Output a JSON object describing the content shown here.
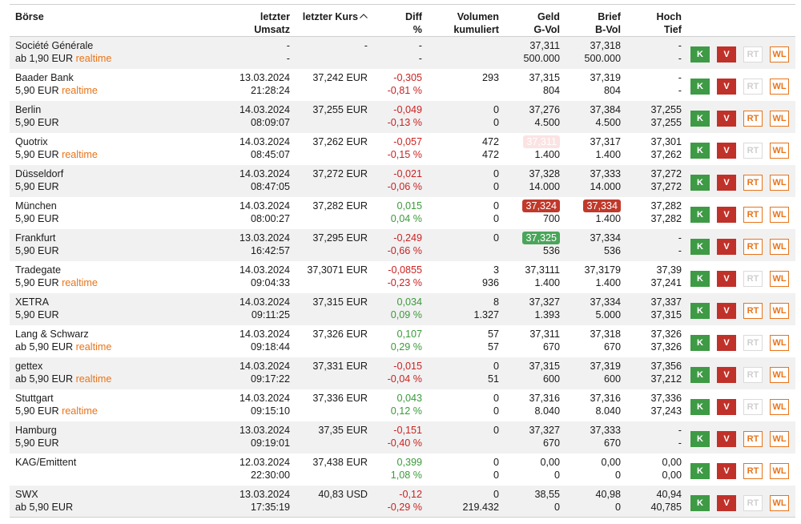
{
  "headers": {
    "boerse": "Börse",
    "umsatz_1": "letzter",
    "umsatz_2": "Umsatz",
    "kurs": "letzter Kurs",
    "diff_1": "Diff",
    "diff_2": "%",
    "vol_1": "Volumen",
    "vol_2": "kumuliert",
    "geld_1": "Geld",
    "geld_2": "G-Vol",
    "brief_1": "Brief",
    "brief_2": "B-Vol",
    "hoch_1": "Hoch",
    "hoch_2": "Tief"
  },
  "buttons": {
    "k": "K",
    "v": "V",
    "rt": "RT",
    "wl": "WL"
  },
  "colors": {
    "positive": "#3a9a3a",
    "negative": "#cc2222",
    "accent": "#e8741a",
    "buy": "#3e9a45",
    "sell": "#c0312a"
  },
  "rows": [
    {
      "name": "Société Générale",
      "fee": "ab 1,90 EUR",
      "rt_label": "realtime",
      "date": "-",
      "time": "-",
      "kurs": "-",
      "diff": "-",
      "pct": "-",
      "dir": "",
      "vol1": "",
      "vol2": "",
      "geld": "37,311",
      "gvol": "500.000",
      "brief": "37,318",
      "bvol": "500.000",
      "hoch": "-",
      "tief": "-",
      "rt_enabled": false,
      "geld_hl": "",
      "brief_hl": ""
    },
    {
      "name": "Baader Bank",
      "fee": "5,90 EUR",
      "rt_label": "realtime",
      "date": "13.03.2024",
      "time": "21:28:24",
      "kurs": "37,242 EUR",
      "diff": "-0,305",
      "pct": "-0,81 %",
      "dir": "neg",
      "vol1": "293",
      "vol2": "",
      "geld": "37,315",
      "gvol": "804",
      "brief": "37,319",
      "bvol": "804",
      "hoch": "-",
      "tief": "-",
      "rt_enabled": false,
      "geld_hl": "",
      "brief_hl": ""
    },
    {
      "name": "Berlin",
      "fee": "5,90 EUR",
      "rt_label": "",
      "date": "14.03.2024",
      "time": "08:09:07",
      "kurs": "37,255 EUR",
      "diff": "-0,049",
      "pct": "-0,13 %",
      "dir": "neg",
      "vol1": "0",
      "vol2": "0",
      "geld": "37,276",
      "gvol": "4.500",
      "brief": "37,384",
      "bvol": "4.500",
      "hoch": "37,255",
      "tief": "37,255",
      "rt_enabled": true,
      "geld_hl": "",
      "brief_hl": ""
    },
    {
      "name": "Quotrix",
      "fee": "5,90 EUR",
      "rt_label": "realtime",
      "date": "14.03.2024",
      "time": "08:45:07",
      "kurs": "37,262 EUR",
      "diff": "-0,057",
      "pct": "-0,15 %",
      "dir": "neg",
      "vol1": "472",
      "vol2": "472",
      "geld": "37,311",
      "gvol": "1.400",
      "brief": "37,317",
      "bvol": "1.400",
      "hoch": "37,301",
      "tief": "37,262",
      "rt_enabled": false,
      "geld_hl": "faint",
      "brief_hl": ""
    },
    {
      "name": "Düsseldorf",
      "fee": "5,90 EUR",
      "rt_label": "",
      "date": "14.03.2024",
      "time": "08:47:05",
      "kurs": "37,272 EUR",
      "diff": "-0,021",
      "pct": "-0,06 %",
      "dir": "neg",
      "vol1": "0",
      "vol2": "0",
      "geld": "37,328",
      "gvol": "14.000",
      "brief": "37,333",
      "bvol": "14.000",
      "hoch": "37,272",
      "tief": "37,272",
      "rt_enabled": true,
      "geld_hl": "",
      "brief_hl": ""
    },
    {
      "name": "München",
      "fee": "5,90 EUR",
      "rt_label": "",
      "date": "14.03.2024",
      "time": "08:00:27",
      "kurs": "37,282 EUR",
      "diff": "0,015",
      "pct": "0,04 %",
      "dir": "pos",
      "vol1": "0",
      "vol2": "0",
      "geld": "37,324",
      "gvol": "700",
      "brief": "37,334",
      "bvol": "1.400",
      "hoch": "37,282",
      "tief": "37,282",
      "rt_enabled": true,
      "geld_hl": "red",
      "brief_hl": "red"
    },
    {
      "name": "Frankfurt",
      "fee": "5,90 EUR",
      "rt_label": "",
      "date": "13.03.2024",
      "time": "16:42:57",
      "kurs": "37,295 EUR",
      "diff": "-0,249",
      "pct": "-0,66 %",
      "dir": "neg",
      "vol1": "0",
      "vol2": "",
      "geld": "37,325",
      "gvol": "536",
      "brief": "37,334",
      "bvol": "536",
      "hoch": "-",
      "tief": "-",
      "rt_enabled": true,
      "geld_hl": "green",
      "brief_hl": ""
    },
    {
      "name": "Tradegate",
      "fee": "5,90 EUR",
      "rt_label": "realtime",
      "date": "14.03.2024",
      "time": "09:04:33",
      "kurs": "37,3071 EUR",
      "diff": "-0,0855",
      "pct": "-0,23 %",
      "dir": "neg",
      "vol1": "3",
      "vol2": "936",
      "geld": "37,3111",
      "gvol": "1.400",
      "brief": "37,3179",
      "bvol": "1.400",
      "hoch": "37,39",
      "tief": "37,241",
      "rt_enabled": false,
      "geld_hl": "",
      "brief_hl": ""
    },
    {
      "name": "XETRA",
      "fee": "5,90 EUR",
      "rt_label": "",
      "date": "14.03.2024",
      "time": "09:11:25",
      "kurs": "37,315 EUR",
      "diff": "0,034",
      "pct": "0,09 %",
      "dir": "pos",
      "vol1": "8",
      "vol2": "1.327",
      "geld": "37,327",
      "gvol": "1.393",
      "brief": "37,334",
      "bvol": "5.000",
      "hoch": "37,337",
      "tief": "37,315",
      "rt_enabled": true,
      "geld_hl": "",
      "brief_hl": ""
    },
    {
      "name": "Lang & Schwarz",
      "fee": "ab 5,90 EUR",
      "rt_label": "realtime",
      "date": "14.03.2024",
      "time": "09:18:44",
      "kurs": "37,326 EUR",
      "diff": "0,107",
      "pct": "0,29 %",
      "dir": "pos",
      "vol1": "57",
      "vol2": "57",
      "geld": "37,311",
      "gvol": "670",
      "brief": "37,318",
      "bvol": "670",
      "hoch": "37,326",
      "tief": "37,326",
      "rt_enabled": false,
      "geld_hl": "",
      "brief_hl": ""
    },
    {
      "name": "gettex",
      "fee": "ab 5,90 EUR",
      "rt_label": "realtime",
      "date": "14.03.2024",
      "time": "09:17:22",
      "kurs": "37,331 EUR",
      "diff": "-0,015",
      "pct": "-0,04 %",
      "dir": "neg",
      "vol1": "0",
      "vol2": "51",
      "geld": "37,315",
      "gvol": "600",
      "brief": "37,319",
      "bvol": "600",
      "hoch": "37,356",
      "tief": "37,212",
      "rt_enabled": false,
      "geld_hl": "",
      "brief_hl": ""
    },
    {
      "name": "Stuttgart",
      "fee": "5,90 EUR",
      "rt_label": "realtime",
      "date": "14.03.2024",
      "time": "09:15:10",
      "kurs": "37,336 EUR",
      "diff": "0,043",
      "pct": "0,12 %",
      "dir": "pos",
      "vol1": "0",
      "vol2": "0",
      "geld": "37,316",
      "gvol": "8.040",
      "brief": "37,316",
      "bvol": "8.040",
      "hoch": "37,336",
      "tief": "37,243",
      "rt_enabled": false,
      "geld_hl": "",
      "brief_hl": ""
    },
    {
      "name": "Hamburg",
      "fee": "5,90 EUR",
      "rt_label": "",
      "date": "13.03.2024",
      "time": "09:19:01",
      "kurs": "37,35 EUR",
      "diff": "-0,151",
      "pct": "-0,40 %",
      "dir": "neg",
      "vol1": "0",
      "vol2": "",
      "geld": "37,327",
      "gvol": "670",
      "brief": "37,333",
      "bvol": "670",
      "hoch": "-",
      "tief": "-",
      "rt_enabled": true,
      "geld_hl": "",
      "brief_hl": ""
    },
    {
      "name": "KAG/Emittent",
      "fee": "",
      "rt_label": "",
      "date": "12.03.2024",
      "time": "22:30:00",
      "kurs": "37,438 EUR",
      "diff": "0,399",
      "pct": "1,08 %",
      "dir": "pos",
      "vol1": "0",
      "vol2": "0",
      "geld": "0,00",
      "gvol": "0",
      "brief": "0,00",
      "bvol": "0",
      "hoch": "0,00",
      "tief": "0,00",
      "rt_enabled": true,
      "geld_hl": "",
      "brief_hl": ""
    },
    {
      "name": "SWX",
      "fee": "ab 5,90 EUR",
      "rt_label": "",
      "date": "13.03.2024",
      "time": "17:35:19",
      "kurs": "40,83 USD",
      "diff": "-0,12",
      "pct": "-0,29 %",
      "dir": "neg",
      "vol1": "0",
      "vol2": "219.432",
      "geld": "38,55",
      "gvol": "0",
      "brief": "40,98",
      "bvol": "0",
      "hoch": "40,94",
      "tief": "40,785",
      "rt_enabled": false,
      "geld_hl": "",
      "brief_hl": ""
    }
  ]
}
